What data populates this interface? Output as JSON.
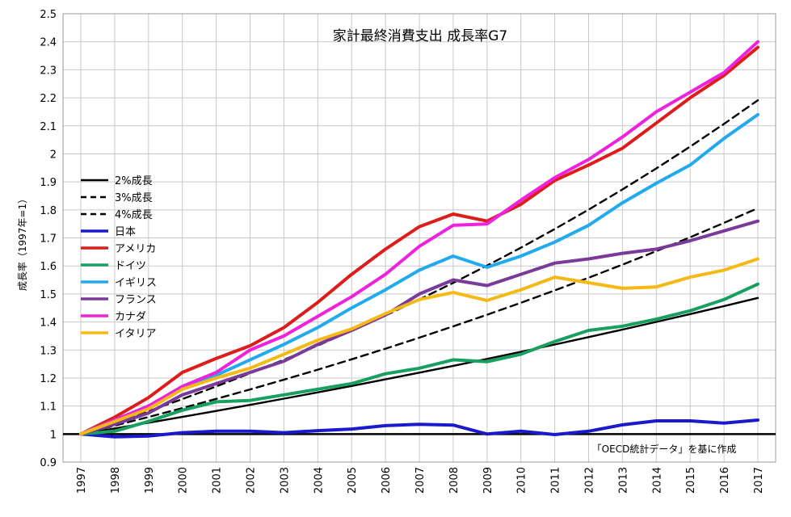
{
  "chart_data": {
    "type": "line",
    "title": "家計最終消費支出 成長率G7",
    "ylabel": "成長率（1997年=1）",
    "xlabel": "",
    "source_note": "「OECD統計データ」を基に作成",
    "ylim": [
      0.9,
      2.5
    ],
    "y_ticks": [
      0.9,
      1,
      1.1,
      1.2,
      1.3,
      1.4,
      1.5,
      1.6,
      1.7,
      1.8,
      1.9,
      2,
      2.1,
      2.2,
      2.3,
      2.4,
      2.5
    ],
    "y_tick_labels": [
      "0.9",
      "1",
      "1.1",
      "1.2",
      "1.3",
      "1.4",
      "1.5",
      "1.6",
      "1.7",
      "1.8",
      "1.9",
      "2",
      "2.1",
      "2.2",
      "2.3",
      "2.4",
      "2.5"
    ],
    "x": [
      "1997",
      "1998",
      "1999",
      "2000",
      "2001",
      "2002",
      "2003",
      "2004",
      "2005",
      "2006",
      "2007",
      "2008",
      "2009",
      "2010",
      "2011",
      "2012",
      "2013",
      "2014",
      "2015",
      "2016",
      "2017"
    ],
    "legend_position": "left",
    "grid": true,
    "series": [
      {
        "name": "2%成長",
        "color": "#000000",
        "dash": "solid",
        "values": [
          1.0,
          1.02,
          1.0404,
          1.0612,
          1.0824,
          1.1041,
          1.1262,
          1.1487,
          1.1717,
          1.1951,
          1.219,
          1.2434,
          1.2682,
          1.2936,
          1.3195,
          1.3459,
          1.3728,
          1.4002,
          1.4282,
          1.4568,
          1.4859
        ]
      },
      {
        "name": "3%成長",
        "color": "#000000",
        "dash": "dashed",
        "values": [
          1.0,
          1.03,
          1.0609,
          1.0927,
          1.1255,
          1.1593,
          1.1941,
          1.2299,
          1.2668,
          1.3048,
          1.3439,
          1.3842,
          1.4258,
          1.4685,
          1.5126,
          1.558,
          1.6047,
          1.6528,
          1.7024,
          1.7535,
          1.8061
        ]
      },
      {
        "name": "4%成長",
        "color": "#000000",
        "dash": "dashed",
        "values": [
          1.0,
          1.04,
          1.0816,
          1.1249,
          1.1699,
          1.2167,
          1.2653,
          1.3159,
          1.3686,
          1.4233,
          1.4802,
          1.5395,
          1.601,
          1.6651,
          1.7317,
          1.8009,
          1.873,
          1.9479,
          2.0258,
          2.1068,
          2.1911
        ]
      },
      {
        "name": "日本",
        "color": "#1a1acc",
        "dash": "solid",
        "values": [
          1.0,
          0.99,
          0.993,
          1.005,
          1.01,
          1.01,
          1.005,
          1.012,
          1.018,
          1.03,
          1.035,
          1.032,
          1.0,
          1.01,
          0.998,
          1.01,
          1.033,
          1.047,
          1.047,
          1.039,
          1.05
        ]
      },
      {
        "name": "アメリカ",
        "color": "#dd1c1c",
        "dash": "solid",
        "values": [
          1.0,
          1.06,
          1.13,
          1.22,
          1.27,
          1.315,
          1.38,
          1.47,
          1.57,
          1.66,
          1.74,
          1.785,
          1.76,
          1.82,
          1.905,
          1.96,
          2.02,
          2.11,
          2.2,
          2.28,
          2.38
        ]
      },
      {
        "name": "ドイツ",
        "color": "#18a060",
        "dash": "solid",
        "values": [
          1.0,
          1.01,
          1.045,
          1.085,
          1.115,
          1.12,
          1.14,
          1.16,
          1.18,
          1.215,
          1.235,
          1.265,
          1.258,
          1.285,
          1.33,
          1.37,
          1.385,
          1.41,
          1.44,
          1.48,
          1.535
        ]
      },
      {
        "name": "イギリス",
        "color": "#22aaee",
        "dash": "solid",
        "values": [
          1.0,
          1.05,
          1.1,
          1.16,
          1.21,
          1.265,
          1.32,
          1.38,
          1.45,
          1.515,
          1.585,
          1.635,
          1.595,
          1.635,
          1.685,
          1.745,
          1.825,
          1.895,
          1.96,
          2.055,
          2.14
        ]
      },
      {
        "name": "フランス",
        "color": "#7a3a9a",
        "dash": "solid",
        "values": [
          1.0,
          1.035,
          1.075,
          1.14,
          1.18,
          1.22,
          1.26,
          1.32,
          1.37,
          1.425,
          1.5,
          1.55,
          1.53,
          1.57,
          1.61,
          1.625,
          1.645,
          1.66,
          1.69,
          1.725,
          1.76
        ]
      },
      {
        "name": "カナダ",
        "color": "#ee22dd",
        "dash": "solid",
        "values": [
          1.0,
          1.05,
          1.1,
          1.17,
          1.22,
          1.3,
          1.35,
          1.42,
          1.49,
          1.57,
          1.67,
          1.745,
          1.75,
          1.835,
          1.915,
          1.98,
          2.06,
          2.15,
          2.22,
          2.29,
          2.4
        ]
      },
      {
        "name": "イタリア",
        "color": "#f5b915",
        "dash": "solid",
        "values": [
          1.0,
          1.045,
          1.09,
          1.16,
          1.2,
          1.235,
          1.285,
          1.335,
          1.375,
          1.43,
          1.48,
          1.505,
          1.477,
          1.515,
          1.56,
          1.54,
          1.52,
          1.525,
          1.56,
          1.585,
          1.625
        ]
      }
    ]
  }
}
